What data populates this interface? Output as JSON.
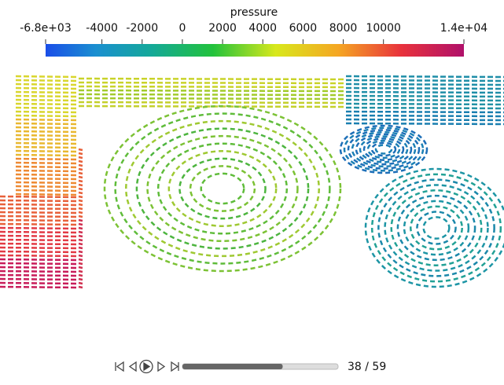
{
  "colorbar": {
    "title": "pressure",
    "range": [
      -6800,
      14000
    ],
    "ticks": [
      {
        "value": -6800,
        "label": "-6.8e+03"
      },
      -4000,
      -2000,
      0,
      2000,
      4000,
      6000,
      8000,
      10000,
      {
        "value": 14000,
        "label": "1.4e+04"
      }
    ]
  },
  "player": {
    "frame": 38,
    "frames": 59,
    "counter": "38 / 59"
  }
}
